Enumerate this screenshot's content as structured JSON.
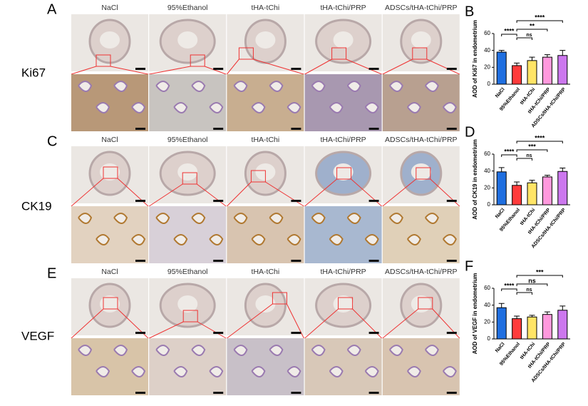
{
  "figure": {
    "panels": [
      {
        "label": "A",
        "marker": "Ki67",
        "columns": [
          "NaCl",
          "95%Ethanol",
          "tHA-tChi",
          "tHA-tChi/PRP",
          "ADSCs/tHA-tChi/PRP"
        ]
      },
      {
        "label": "C",
        "marker": "CK19",
        "columns": [
          "NaCl",
          "95%Ethanol",
          "tHA-tChi",
          "tHA-tChi/PRP",
          "ADSCs/tHA-tChi/PRP"
        ]
      },
      {
        "label": "E",
        "marker": "VEGF",
        "columns": [
          "NaCl",
          "95%Ethanol",
          "tHA-tChi",
          "tHA-tChi/PRP",
          "ADSCs/tHA-tChi/PRP"
        ]
      }
    ]
  },
  "chart_data": [
    {
      "type": "bar",
      "panel_label": "B",
      "y_label": "AOD of Ki67 in endometrium",
      "categories": [
        "NaCl",
        "95%Ethanol",
        "tHA-tChi",
        "tHA-tChi/PRP",
        "ADSCs/tHA-tChi/PRP"
      ],
      "values": [
        38,
        22,
        28,
        32,
        34
      ],
      "errors": [
        2,
        3,
        4,
        3,
        6
      ],
      "colors": [
        "#1f6fe0",
        "#ff3b3b",
        "#ffe566",
        "#ff99dd",
        "#cc77ee"
      ],
      "ylim": [
        0,
        60
      ],
      "yticks": [
        0,
        20,
        40,
        60
      ],
      "comparisons": [
        {
          "between": [
            "NaCl",
            "95%Ethanol"
          ],
          "label": "****"
        },
        {
          "between": [
            "95%Ethanol",
            "tHA-tChi"
          ],
          "label": "ns"
        },
        {
          "between": [
            "95%Ethanol",
            "tHA-tChi/PRP"
          ],
          "label": "**"
        },
        {
          "between": [
            "95%Ethanol",
            "ADSCs/tHA-tChi/PRP"
          ],
          "label": "****"
        }
      ]
    },
    {
      "type": "bar",
      "panel_label": "D",
      "y_label": "AOD of CK19 in endometrium",
      "categories": [
        "NaCl",
        "95%Ethanol",
        "tHA-tChi",
        "tHA-tChi/PRP",
        "ADSCs/tHA-tChi/PRP"
      ],
      "values": [
        39,
        23,
        26,
        33,
        39.5
      ],
      "errors": [
        5,
        4,
        3,
        2,
        4
      ],
      "colors": [
        "#1f6fe0",
        "#ff3b3b",
        "#ffe566",
        "#ff99dd",
        "#cc77ee"
      ],
      "ylim": [
        0,
        60
      ],
      "yticks": [
        0,
        20,
        40,
        60
      ],
      "comparisons": [
        {
          "between": [
            "NaCl",
            "95%Ethanol"
          ],
          "label": "****"
        },
        {
          "between": [
            "95%Ethanol",
            "tHA-tChi"
          ],
          "label": "ns"
        },
        {
          "between": [
            "95%Ethanol",
            "tHA-tChi/PRP"
          ],
          "label": "***"
        },
        {
          "between": [
            "95%Ethanol",
            "ADSCs/tHA-tChi/PRP"
          ],
          "label": "****"
        }
      ]
    },
    {
      "type": "bar",
      "panel_label": "F",
      "y_label": "AOD of VEGF in endometrium",
      "categories": [
        "NaCl",
        "95%Ethanol",
        "tHA-tChi",
        "tHA-tChi/PRP",
        "ADSCs/tHA-tChi/PRP"
      ],
      "values": [
        37,
        24,
        26,
        29,
        34
      ],
      "errors": [
        5,
        3,
        2,
        3,
        5
      ],
      "colors": [
        "#1f6fe0",
        "#ff3b3b",
        "#ffe566",
        "#ff99dd",
        "#cc77ee"
      ],
      "ylim": [
        0,
        60
      ],
      "yticks": [
        0,
        20,
        40,
        60
      ],
      "comparisons": [
        {
          "between": [
            "NaCl",
            "95%Ethanol"
          ],
          "label": "****"
        },
        {
          "between": [
            "95%Ethanol",
            "tHA-tChi"
          ],
          "label": "ns"
        },
        {
          "between": [
            "95%Ethanol",
            "tHA-tChi/PRP"
          ],
          "label": "ns"
        },
        {
          "between": [
            "95%Ethanol",
            "ADSCs/tHA-tChi/PRP"
          ],
          "label": "***"
        }
      ]
    }
  ]
}
